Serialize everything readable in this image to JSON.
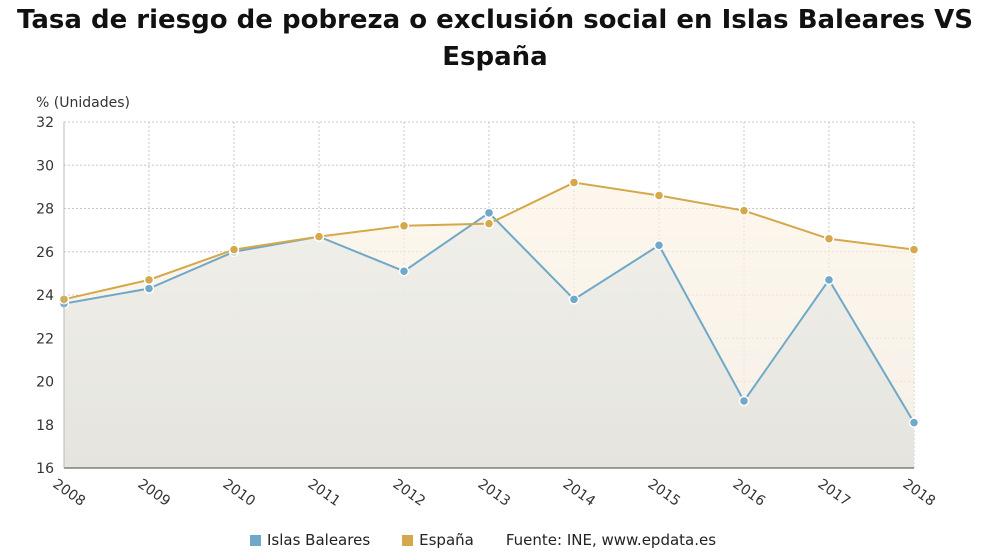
{
  "chart_data": {
    "type": "line",
    "title": "Tasa de riesgo de pobreza o exclusión social en Islas Baleares VS España",
    "ylabel": "% (Unidades)",
    "xlabel": "",
    "x": [
      "2008",
      "2009",
      "2010",
      "2011",
      "2012",
      "2013",
      "2014",
      "2015",
      "2016",
      "2017",
      "2018"
    ],
    "ylim": [
      16,
      32
    ],
    "yticks": [
      16,
      18,
      20,
      22,
      24,
      26,
      28,
      30,
      32
    ],
    "grid": true,
    "legend_position": "bottom",
    "series": [
      {
        "name": "Islas Baleares",
        "color": "#6fa8c8",
        "values": [
          23.6,
          24.3,
          26.0,
          26.7,
          25.1,
          27.8,
          23.8,
          26.3,
          19.1,
          24.7,
          18.1
        ]
      },
      {
        "name": "España",
        "color": "#d4a84b",
        "values": [
          23.8,
          24.7,
          26.1,
          26.7,
          27.2,
          27.3,
          29.2,
          28.6,
          27.9,
          26.6,
          26.1
        ]
      }
    ],
    "source": "Fuente: INE, www.epdata.es"
  }
}
